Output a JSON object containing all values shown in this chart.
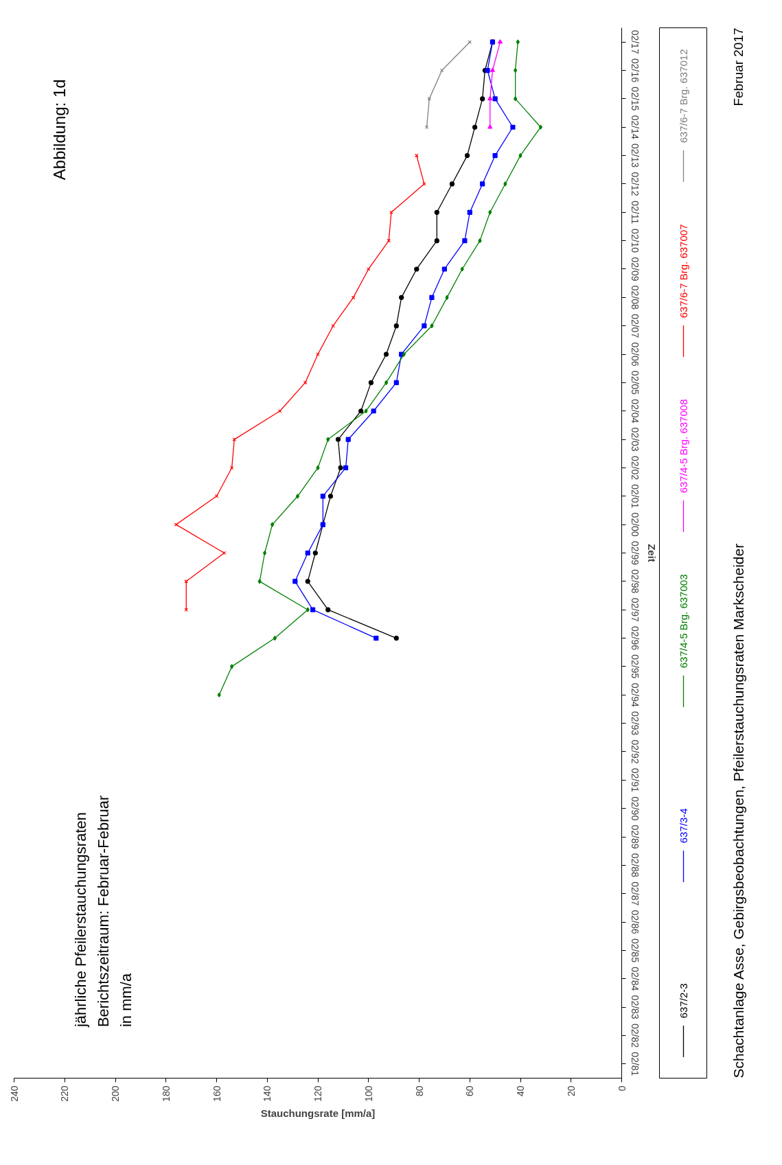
{
  "chart_data": {
    "type": "line",
    "orientation": "horizontal",
    "title": "Abbildung:  1d",
    "subtitle": "jährliche Pfeilerstauchungsraten\nBerichtszeitraum: Februar-Februar\nin mm/a",
    "xlabel": "Stauchungsrate [mm/a]",
    "ylabel": "Zeit",
    "categories": [
      "02/17",
      "02/16",
      "02/15",
      "02/14",
      "02/13",
      "02/12",
      "02/11",
      "02/10",
      "02/09",
      "02/08",
      "02/07",
      "02/06",
      "02/05",
      "02/04",
      "02/03",
      "02/02",
      "02/01",
      "02/00",
      "02/99",
      "02/98",
      "02/97",
      "02/96",
      "02/95",
      "02/94",
      "02/93",
      "02/92",
      "02/91",
      "02/90",
      "02/89",
      "02/88",
      "02/87",
      "02/86",
      "02/85",
      "02/84",
      "02/83",
      "02/82",
      "02/81"
    ],
    "series": [
      {
        "name": "637/2-3",
        "color": "#000000",
        "marker": "circle",
        "values": [
          51,
          54,
          55,
          58,
          61,
          67,
          73,
          73,
          81,
          87,
          89,
          93,
          99,
          103,
          112,
          111,
          115,
          118,
          121,
          124,
          116,
          89,
          null,
          null,
          null,
          null,
          null,
          null,
          null,
          null,
          null,
          null,
          null,
          null,
          null,
          null,
          null
        ]
      },
      {
        "name": "637/3-4",
        "color": "#0000ff",
        "marker": "square",
        "values": [
          51,
          53,
          50,
          43,
          50,
          55,
          60,
          62,
          70,
          75,
          78,
          87,
          89,
          98,
          108,
          109,
          118,
          118,
          124,
          129,
          122,
          97,
          null,
          null,
          null,
          null,
          null,
          null,
          null,
          null,
          null,
          null,
          null,
          null,
          null,
          null,
          null
        ]
      },
      {
        "name": "637/4-5 Brg. 637003",
        "color": "#008000",
        "marker": "diamond",
        "values": [
          41,
          42,
          42,
          32,
          40,
          46,
          52,
          56,
          63,
          69,
          75,
          86,
          93,
          101,
          116,
          120,
          128,
          138,
          141,
          143,
          124,
          137,
          154,
          159,
          null,
          null,
          null,
          null,
          null,
          null,
          null,
          null,
          null,
          null,
          null,
          null,
          null
        ]
      },
      {
        "name": "637/4-5 Brg. 637008",
        "color": "#ff00ff",
        "marker": "triangle",
        "values": [
          48,
          51,
          52,
          52,
          null,
          null,
          null,
          null,
          null,
          null,
          null,
          null,
          null,
          null,
          null,
          null,
          null,
          null,
          null,
          null,
          null,
          null,
          null,
          null,
          null,
          null,
          null,
          null,
          null,
          null,
          null,
          null,
          null,
          null,
          null,
          null,
          null
        ]
      },
      {
        "name": "637/6-7 Brg. 637007",
        "color": "#ff0000",
        "marker": "cross",
        "values": [
          null,
          null,
          null,
          null,
          81,
          78,
          91,
          92,
          100,
          106,
          114,
          120,
          125,
          135,
          153,
          154,
          160,
          176,
          157,
          172,
          172,
          null,
          null,
          null,
          null,
          null,
          null,
          null,
          null,
          null,
          null,
          null,
          null,
          null,
          null,
          null,
          null
        ]
      },
      {
        "name": "637/6-7 Brg. 637012",
        "color": "#808080",
        "marker": "cross",
        "values": [
          60,
          71,
          76,
          77,
          null,
          null,
          null,
          null,
          null,
          null,
          null,
          null,
          null,
          null,
          null,
          null,
          null,
          null,
          null,
          null,
          null,
          null,
          null,
          null,
          null,
          null,
          null,
          null,
          null,
          null,
          null,
          null,
          null,
          null,
          null,
          null,
          null
        ]
      }
    ],
    "xlim": [
      240,
      0
    ],
    "xticks": [
      0,
      20,
      40,
      60,
      80,
      100,
      120,
      140,
      160,
      180,
      200,
      220,
      240
    ],
    "grid": false,
    "legend": "right",
    "annotations": [
      "Schachtanlage Asse, Gebirgsbeobachtungen, Pfeilerstauchungsraten Markscheider",
      "Februar 2017"
    ]
  }
}
